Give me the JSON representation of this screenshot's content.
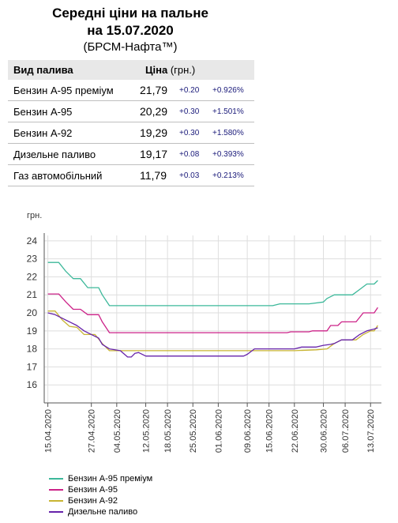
{
  "header": {
    "title_line1": "Середні ціни на пальне",
    "title_line2": "на 15.07.2020",
    "subtitle": "(БРСМ-Нафта™)"
  },
  "table": {
    "col_fuel": "Вид палива",
    "col_price": "Ціна",
    "col_unit": "(грн.)",
    "rows": [
      {
        "name": "Бензин А-95 преміум",
        "price": "21,79",
        "change": "+0.20",
        "pct": "+0.926%"
      },
      {
        "name": "Бензин А-95",
        "price": "20,29",
        "change": "+0.30",
        "pct": "+1.501%"
      },
      {
        "name": "Бензин А-92",
        "price": "19,29",
        "change": "+0.30",
        "pct": "+1.580%"
      },
      {
        "name": "Дизельне паливо",
        "price": "19,17",
        "change": "+0.08",
        "pct": "+0.393%"
      },
      {
        "name": "Газ автомобільний",
        "price": "11,79",
        "change": "+0.03",
        "pct": "+0.213%"
      }
    ]
  },
  "chart_data": {
    "type": "line",
    "ylabel": "грн.",
    "ylim": [
      15,
      24.3
    ],
    "yticks": [
      16,
      17,
      18,
      19,
      20,
      21,
      22,
      23,
      24
    ],
    "xlim": [
      "2020-04-14",
      "2020-07-16"
    ],
    "xticks": [
      "15.04.2020",
      "27.04.2020",
      "04.05.2020",
      "12.05.2020",
      "18.05.2020",
      "25.05.2020",
      "01.06.2020",
      "09.06.2020",
      "15.06.2020",
      "22.06.2020",
      "30.06.2020",
      "06.07.2020",
      "13.07.2020"
    ],
    "grid": true,
    "legend_position": "bottom-left",
    "series": [
      {
        "name": "Бензин А-95 преміум",
        "color": "#3cb89a",
        "points": [
          [
            "15.04.2020",
            22.8
          ],
          [
            "18.04.2020",
            22.8
          ],
          [
            "20.04.2020",
            22.3
          ],
          [
            "22.04.2020",
            21.9
          ],
          [
            "24.04.2020",
            21.9
          ],
          [
            "26.04.2020",
            21.4
          ],
          [
            "29.04.2020",
            21.4
          ],
          [
            "30.04.2020",
            21.0
          ],
          [
            "02.05.2020",
            20.4
          ],
          [
            "10.06.2020",
            20.4
          ],
          [
            "16.06.2020",
            20.4
          ],
          [
            "18.06.2020",
            20.5
          ],
          [
            "24.06.2020",
            20.5
          ],
          [
            "26.06.2020",
            20.5
          ],
          [
            "30.06.2020",
            20.6
          ],
          [
            "01.07.2020",
            20.8
          ],
          [
            "03.07.2020",
            21.0
          ],
          [
            "08.07.2020",
            21.0
          ],
          [
            "10.07.2020",
            21.3
          ],
          [
            "12.07.2020",
            21.6
          ],
          [
            "14.07.2020",
            21.6
          ],
          [
            "15.07.2020",
            21.8
          ]
        ]
      },
      {
        "name": "Бензин А-95",
        "color": "#cc2288",
        "points": [
          [
            "15.04.2020",
            21.05
          ],
          [
            "18.04.2020",
            21.05
          ],
          [
            "20.04.2020",
            20.6
          ],
          [
            "22.04.2020",
            20.2
          ],
          [
            "24.04.2020",
            20.2
          ],
          [
            "26.04.2020",
            19.9
          ],
          [
            "29.04.2020",
            19.9
          ],
          [
            "30.04.2020",
            19.5
          ],
          [
            "02.05.2020",
            18.9
          ],
          [
            "20.06.2020",
            18.9
          ],
          [
            "21.06.2020",
            18.95
          ],
          [
            "26.06.2020",
            18.95
          ],
          [
            "27.06.2020",
            19.0
          ],
          [
            "01.07.2020",
            19.0
          ],
          [
            "02.07.2020",
            19.3
          ],
          [
            "04.07.2020",
            19.3
          ],
          [
            "05.07.2020",
            19.5
          ],
          [
            "09.07.2020",
            19.5
          ],
          [
            "11.07.2020",
            20.0
          ],
          [
            "14.07.2020",
            20.0
          ],
          [
            "15.07.2020",
            20.3
          ]
        ]
      },
      {
        "name": "Бензин А-92",
        "color": "#c8b432",
        "points": [
          [
            "15.04.2020",
            20.1
          ],
          [
            "17.04.2020",
            20.1
          ],
          [
            "19.04.2020",
            19.6
          ],
          [
            "21.04.2020",
            19.25
          ],
          [
            "23.04.2020",
            19.2
          ],
          [
            "25.04.2020",
            18.8
          ],
          [
            "28.04.2020",
            18.8
          ],
          [
            "30.04.2020",
            18.3
          ],
          [
            "02.05.2020",
            17.9
          ],
          [
            "22.06.2020",
            17.9
          ],
          [
            "28.06.2020",
            17.95
          ],
          [
            "01.07.2020",
            18.0
          ],
          [
            "03.07.2020",
            18.3
          ],
          [
            "05.07.2020",
            18.5
          ],
          [
            "09.07.2020",
            18.5
          ],
          [
            "11.07.2020",
            18.8
          ],
          [
            "13.07.2020",
            19.0
          ],
          [
            "14.07.2020",
            19.0
          ],
          [
            "15.07.2020",
            19.3
          ]
        ]
      },
      {
        "name": "Дизельне паливо",
        "color": "#6622aa",
        "points": [
          [
            "15.04.2020",
            20.0
          ],
          [
            "17.04.2020",
            19.9
          ],
          [
            "19.04.2020",
            19.7
          ],
          [
            "21.04.2020",
            19.5
          ],
          [
            "23.04.2020",
            19.3
          ],
          [
            "25.04.2020",
            19.0
          ],
          [
            "27.04.2020",
            18.8
          ],
          [
            "29.04.2020",
            18.6
          ],
          [
            "30.04.2020",
            18.25
          ],
          [
            "02.05.2020",
            18.0
          ],
          [
            "05.05.2020",
            17.9
          ],
          [
            "07.05.2020",
            17.55
          ],
          [
            "08.05.2020",
            17.55
          ],
          [
            "09.05.2020",
            17.75
          ],
          [
            "10.05.2020",
            17.8
          ],
          [
            "12.05.2020",
            17.6
          ],
          [
            "08.06.2020",
            17.6
          ],
          [
            "09.06.2020",
            17.7
          ],
          [
            "11.06.2020",
            18.0
          ],
          [
            "22.06.2020",
            18.0
          ],
          [
            "24.06.2020",
            18.1
          ],
          [
            "28.06.2020",
            18.1
          ],
          [
            "30.06.2020",
            18.2
          ],
          [
            "02.07.2020",
            18.25
          ],
          [
            "03.07.2020",
            18.3
          ],
          [
            "05.07.2020",
            18.5
          ],
          [
            "08.07.2020",
            18.5
          ],
          [
            "10.07.2020",
            18.8
          ],
          [
            "12.07.2020",
            19.0
          ],
          [
            "14.07.2020",
            19.1
          ],
          [
            "15.07.2020",
            19.17
          ]
        ]
      }
    ]
  }
}
